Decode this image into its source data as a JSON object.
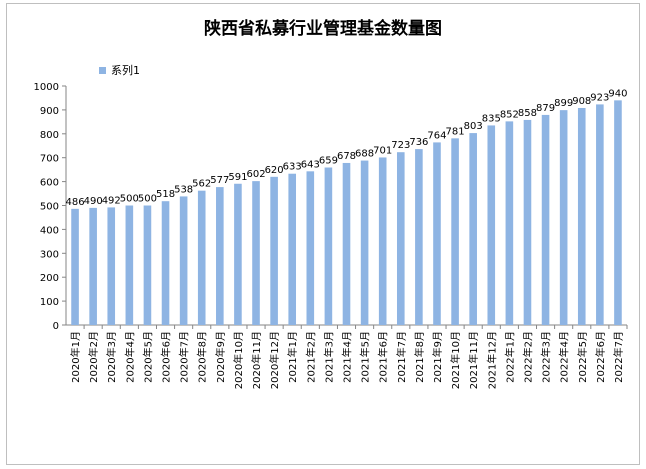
{
  "chart_data": {
    "type": "bar",
    "title": "陕西省私募行业管理基金数量图",
    "xlabel": "",
    "ylabel": "",
    "ylim": [
      0,
      1000
    ],
    "yticks": [
      0,
      100,
      200,
      300,
      400,
      500,
      600,
      700,
      800,
      900,
      1000
    ],
    "grid": false,
    "legend": "top-left",
    "bar_color": "#8eb4e3",
    "categories": [
      "2020年1月",
      "2020年2月",
      "2020年3月",
      "2020年4月",
      "2020年5月",
      "2020年6月",
      "2020年7月",
      "2020年8月",
      "2020年9月",
      "2020年10月",
      "2020年11月",
      "2020年12月",
      "2021年1月",
      "2021年2月",
      "2021年3月",
      "2021年4月",
      "2021年5月",
      "2021年6月",
      "2021年7月",
      "2021年8月",
      "2021年9月",
      "2021年10月",
      "2021年11月",
      "2021年12月",
      "2022年1月",
      "2022年2月",
      "2022年3月",
      "2022年4月",
      "2022年5月",
      "2022年6月",
      "2022年7月"
    ],
    "series": [
      {
        "name": "系列1",
        "values": [
          486,
          490,
          492,
          500,
          500,
          518,
          538,
          562,
          577,
          591,
          602,
          620,
          633,
          643,
          659,
          678,
          688,
          701,
          723,
          736,
          764,
          781,
          803,
          835,
          852,
          858,
          879,
          899,
          908,
          923,
          940
        ]
      }
    ]
  }
}
